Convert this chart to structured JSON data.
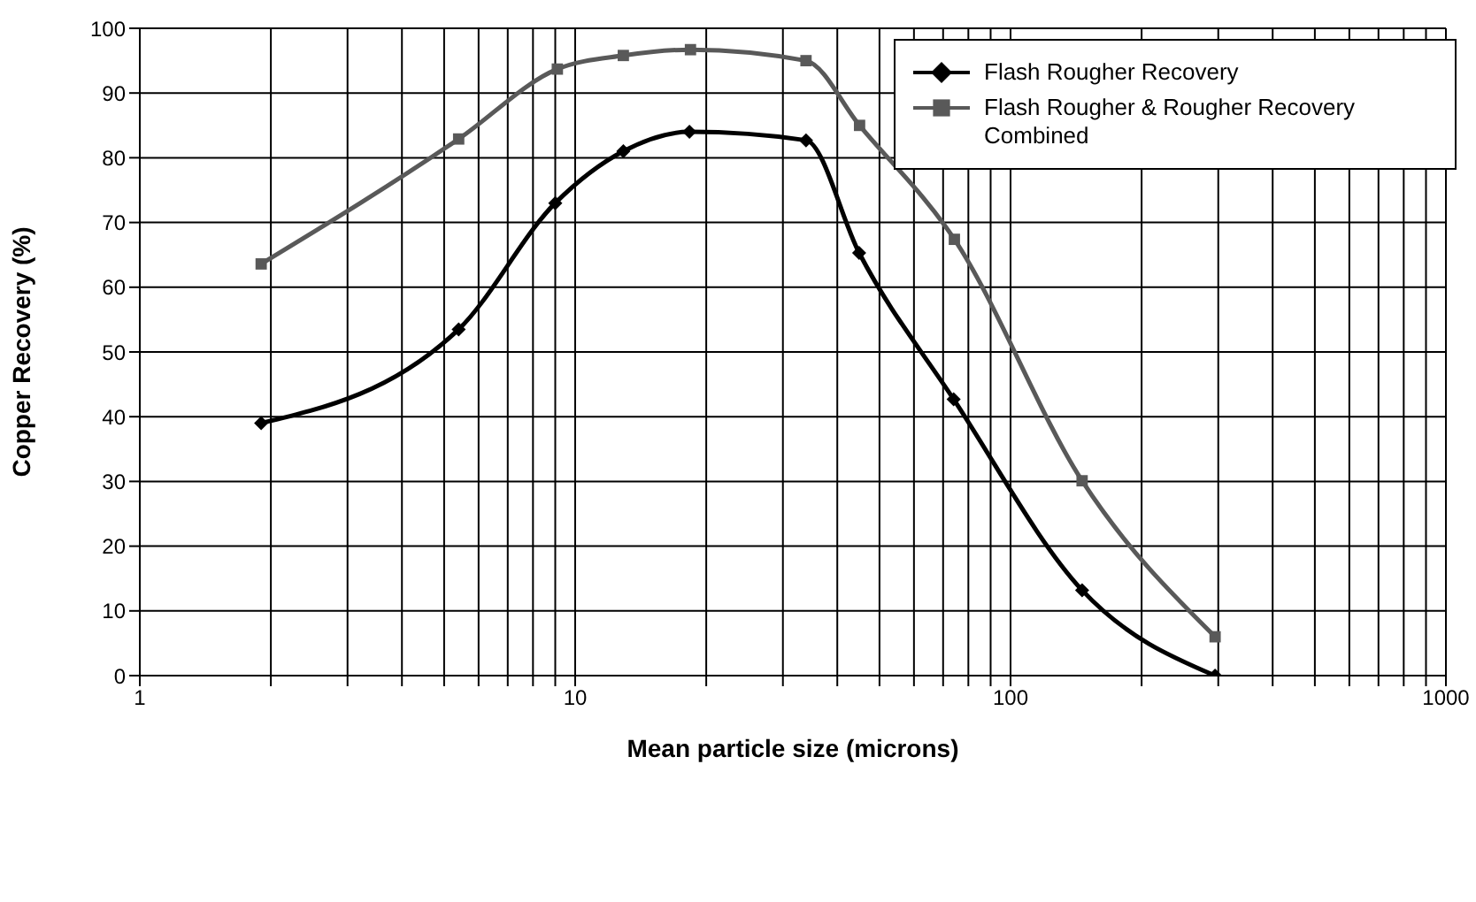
{
  "chart_data": {
    "type": "line",
    "xlabel": "Mean particle size (microns)",
    "ylabel": "Copper Recovery (%)",
    "log": "x",
    "grid": true,
    "legend": "top right",
    "xlim": [
      1,
      1000
    ],
    "xticks": [
      1,
      {
        "value": 2,
        "label": null
      },
      {
        "value": 3,
        "label": null
      },
      {
        "value": 4,
        "label": null
      },
      {
        "value": 5,
        "label": null
      },
      {
        "value": 6,
        "label": null
      },
      {
        "value": 7,
        "label": null
      },
      {
        "value": 8,
        "label": null
      },
      {
        "value": 9,
        "label": null
      },
      10,
      {
        "value": 20,
        "label": null
      },
      {
        "value": 30,
        "label": null
      },
      {
        "value": 40,
        "label": null
      },
      {
        "value": 50,
        "label": null
      },
      {
        "value": 60,
        "label": null
      },
      {
        "value": 70,
        "label": null
      },
      {
        "value": 80,
        "label": null
      },
      {
        "value": 90,
        "label": null
      },
      100,
      {
        "value": 200,
        "label": null
      },
      {
        "value": 300,
        "label": null
      },
      {
        "value": 400,
        "label": null
      },
      {
        "value": 500,
        "label": null
      },
      {
        "value": 600,
        "label": null
      },
      {
        "value": 700,
        "label": null
      },
      {
        "value": 800,
        "label": null
      },
      {
        "value": 900,
        "label": null
      },
      1000
    ],
    "ylim": [
      0,
      100
    ],
    "yticks": [
      0,
      10,
      20,
      30,
      40,
      50,
      60,
      70,
      80,
      90,
      100
    ],
    "line_style": "solid",
    "series": [
      {
        "name": "Flash Rougher Recovery",
        "color": "#000000",
        "marker": "diamond",
        "x": [
          1.9,
          5.4,
          9.0,
          12.9,
          18.3,
          33.9,
          44.9,
          74,
          146,
          295
        ],
        "values": [
          39.0,
          53.5,
          73.0,
          81.0,
          84.0,
          82.7,
          65.3,
          42.7,
          13.2,
          0
        ]
      },
      {
        "name": "Flash Rougher & Rougher Recovery Combined",
        "color": "#595959",
        "marker": "square",
        "x": [
          1.9,
          5.4,
          9.1,
          12.9,
          18.4,
          33.9,
          45,
          74.3,
          146,
          295
        ],
        "values": [
          63.6,
          82.9,
          93.7,
          95.8,
          96.7,
          95.0,
          85.0,
          67.4,
          30.1,
          6.0
        ]
      }
    ]
  }
}
